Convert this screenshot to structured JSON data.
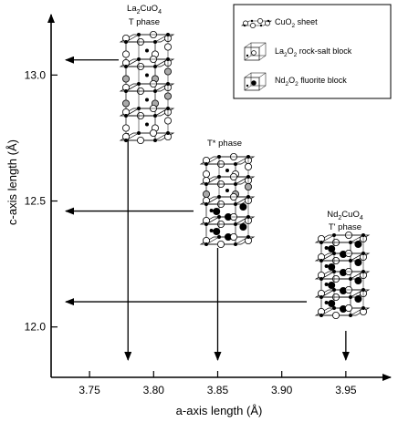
{
  "chart_data": {
    "type": "diagram",
    "xlabel": "a-axis length (Å)",
    "ylabel": "c-axis length (Å)",
    "xlim": [
      3.72,
      3.985
    ],
    "ylim": [
      11.8,
      13.24
    ],
    "xticks": [
      "3.75",
      "3.80",
      "3.85",
      "3.90",
      "3.95"
    ],
    "xtick_values": [
      3.75,
      3.8,
      3.85,
      3.9,
      3.95
    ],
    "yticks": [
      "12.0",
      "12.5",
      "13.0"
    ],
    "ytick_values": [
      12.0,
      12.5,
      13.0
    ],
    "phases": [
      {
        "formula_base": "La",
        "formula_sub1": "2",
        "formula_mid": "CuO",
        "formula_sub2": "4",
        "phase": "T phase",
        "a": 3.78,
        "c": 13.06
      },
      {
        "formula_base": "",
        "formula_sub1": "",
        "formula_mid": "",
        "formula_sub2": "",
        "phase": "T* phase",
        "a": 3.85,
        "c": 12.46
      },
      {
        "formula_base": "Nd",
        "formula_sub1": "2",
        "formula_mid": "CuO",
        "formula_sub2": "4",
        "phase": "T' phase",
        "a": 3.95,
        "c": 12.1
      }
    ],
    "legend": {
      "placement": "top-right",
      "items": [
        {
          "pre": "CuO",
          "sub": "2",
          "post": " sheet",
          "icon": "cuo2-sheet-icon"
        },
        {
          "pre": "La",
          "sub": "2",
          "mid": "O",
          "sub2": "2",
          "post": " rock-salt block",
          "icon": "rock-salt-block-icon"
        },
        {
          "pre": "Nd",
          "sub": "2",
          "mid": "O",
          "sub2": "2",
          "post": " fluorite block",
          "icon": "fluorite-block-icon"
        }
      ]
    }
  }
}
